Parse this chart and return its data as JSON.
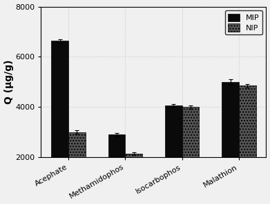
{
  "categories": [
    "Acephate",
    "Methamidophos",
    "Isocarbophos",
    "Malathion"
  ],
  "mip_values": [
    6630,
    2900,
    4050,
    5000
  ],
  "nip_values": [
    3000,
    2150,
    4000,
    4850
  ],
  "mip_errors": [
    80,
    70,
    70,
    110
  ],
  "nip_errors": [
    70,
    55,
    65,
    70
  ],
  "mip_color": "#0a0a0a",
  "nip_color": "#555555",
  "ylabel": "Q (μg/g)",
  "ylim": [
    2000,
    8000
  ],
  "yticks": [
    2000,
    4000,
    6000,
    8000
  ],
  "bar_width": 0.3,
  "legend_labels": [
    "MIP",
    "NIP"
  ],
  "background_color": "#f0f0f0",
  "grid_dot_color": "#cccccc",
  "axis_fontsize": 10,
  "tick_fontsize": 8,
  "legend_fontsize": 8
}
